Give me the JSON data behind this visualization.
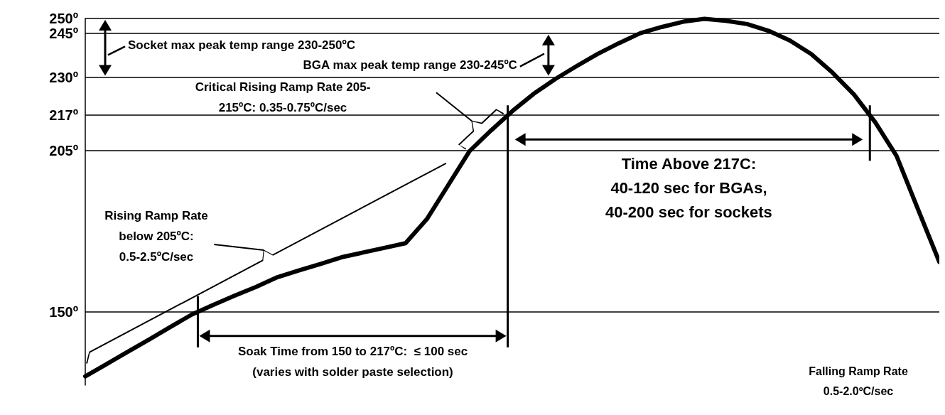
{
  "chart_data": {
    "type": "line",
    "categories": [
      null,
      null,
      null,
      null,
      null,
      null,
      null,
      null,
      null,
      null,
      null,
      null,
      null,
      null,
      null,
      null,
      null,
      null,
      null,
      null,
      null,
      null,
      null,
      null,
      null,
      null,
      null,
      null,
      null,
      null,
      null,
      null,
      null,
      null,
      null,
      null,
      null,
      null,
      null,
      null,
      null
    ],
    "values": [
      128,
      132.2,
      136.4,
      140.6,
      144.9,
      149.1,
      152.4,
      155.5,
      158.5,
      161.8,
      164.1,
      166.3,
      168.6,
      170.2,
      171.8,
      173.4,
      181.6,
      193.2,
      204.8,
      211.8,
      218.4,
      224.3,
      229.3,
      233.7,
      237.9,
      241.6,
      245,
      247.1,
      248.9,
      249.9,
      249.2,
      248.1,
      245.8,
      242.5,
      237.9,
      231.5,
      224.1,
      214.6,
      203.1,
      185,
      167
    ],
    "color": "#000000",
    "ylim": [
      125,
      250
    ],
    "yticks": [
      {
        "value": 150,
        "label": "150º"
      },
      {
        "value": 205,
        "label": "205º"
      },
      {
        "value": 217,
        "label": "217º"
      },
      {
        "value": 230,
        "label": "230º"
      },
      {
        "value": 245,
        "label": "245º"
      },
      {
        "value": 250,
        "label": "250º"
      }
    ],
    "grid": "y",
    "tick_labels": "y",
    "marker": "none",
    "annotations": [
      "Socket max peak temp range 230-250ºC",
      "BGA max peak temp range 230-245ºC",
      "Critical Rising Ramp Rate 205-\n215ºC: 0.35-0.75ºC/sec",
      "Rising Ramp Rate\nbelow 205ºC:\n0.5-2.5ºC/sec",
      "Time Above 217C:\n40-120 sec for BGAs,\n40-200 sec for sockets",
      "Soak Time from 150 to 217ºC:  ≤ 100 sec\n(varies with solder paste selection)",
      "Falling Ramp Rate\n0.5-2.0ºC/sec"
    ]
  }
}
